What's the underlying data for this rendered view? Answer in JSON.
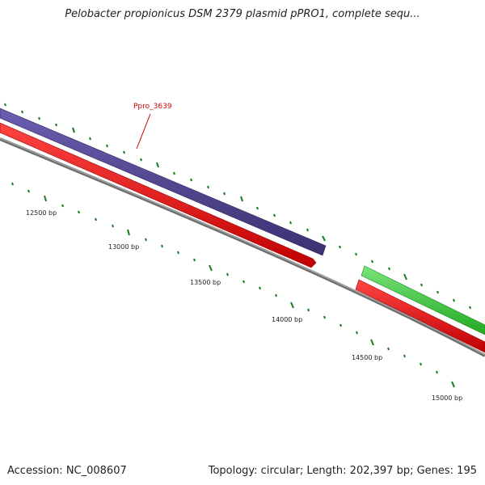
{
  "title": "Pelobacter propionicus DSM 2379 plasmid pPRO1, complete sequ...",
  "gene_label": {
    "text": "Ppro_3639",
    "color": "#cc0000"
  },
  "bp_labels": [
    "12500 bp",
    "13000 bp",
    "13500 bp",
    "14000 bp",
    "14500 bp",
    "15000 bp"
  ],
  "footer": {
    "accession": "Accession: NC_008607",
    "summary": "Topology: circular; Length: 202,397 bp; Genes: 195"
  },
  "colors": {
    "purple_gene": "#4b3f8c",
    "red_gene": "#ee1111",
    "green_gene": "#33cc33",
    "backbone": "#808080",
    "tick": "#1b7a1b"
  }
}
